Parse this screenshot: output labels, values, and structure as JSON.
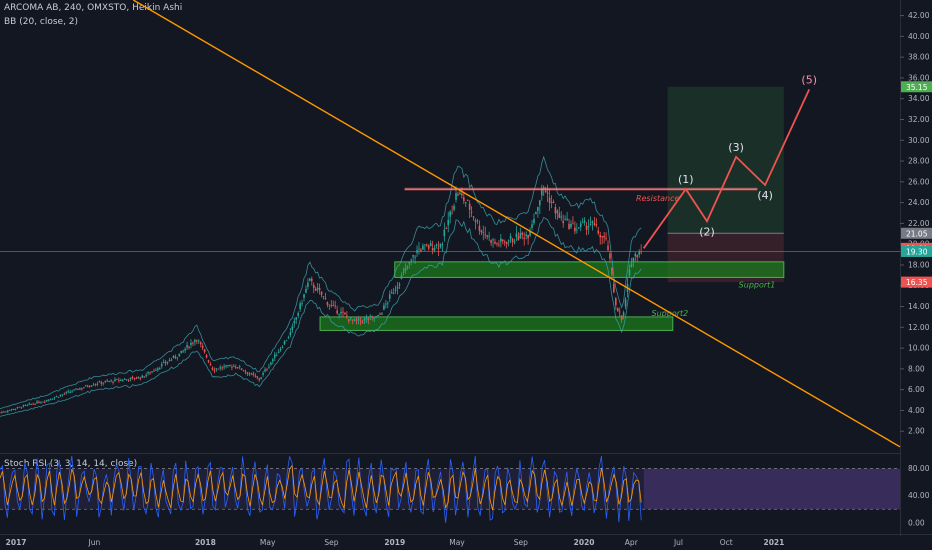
{
  "header": {
    "title": "ARCOMA AB, 240, OMXSTO, Heikin Ashi",
    "indicator": "BB (20, close, 2)",
    "stoch_label": "Stoch RSI (3, 3, 14, 14, close)"
  },
  "colors": {
    "background": "#131722",
    "bull": "#26a69a",
    "bear": "#ef5350",
    "trendline": "#ff9800",
    "resistance": "#f8a5a5",
    "support_fill": "#1b7a1b",
    "support_stroke": "#4caf50",
    "projection": "#ef5350",
    "bb": "#3fa9b5",
    "stoch_k": "#2962ff",
    "stoch_d": "#ff9800",
    "stoch_band": "#7e57c2"
  },
  "chart_data": [
    {
      "type": "candlestick",
      "title": "ARCOMA AB, 240, OMXSTO, Heikin Ashi",
      "y_ticks": [
        2,
        4,
        6,
        8,
        10,
        12,
        14,
        16,
        18,
        20,
        22,
        24,
        26,
        28,
        30,
        32,
        34,
        36,
        38,
        40,
        42
      ],
      "ylim": [
        0,
        43.5
      ],
      "x_ticks": [
        "2017",
        "Jun",
        "2018",
        "May",
        "Sep",
        "2019",
        "May",
        "Sep",
        "2020",
        "Apr",
        "Jul",
        "Oct",
        "2021"
      ],
      "x_tick_dates": [
        "2017-01",
        "2017-06",
        "2018-01",
        "2018-05",
        "2018-09",
        "2019-01",
        "2019-05",
        "2019-09",
        "2020-01",
        "2020-04",
        "2020-07",
        "2020-10",
        "2021-01"
      ],
      "xlim": [
        "2016-12-01",
        "2021-09-01"
      ],
      "price_path": [
        [
          "2016-12-01",
          3.8
        ],
        [
          "2017-03-01",
          5.0
        ],
        [
          "2017-06-01",
          6.6
        ],
        [
          "2017-09-01",
          7.2
        ],
        [
          "2017-11-15",
          9.5
        ],
        [
          "2017-12-15",
          11.0
        ],
        [
          "2018-01-15",
          8.0
        ],
        [
          "2018-03-01",
          8.3
        ],
        [
          "2018-04-15",
          7.0
        ],
        [
          "2018-06-15",
          11.5
        ],
        [
          "2018-07-20",
          16.5
        ],
        [
          "2018-09-01",
          14.0
        ],
        [
          "2018-10-15",
          12.5
        ],
        [
          "2018-12-01",
          13.0
        ],
        [
          "2019-01-10",
          16.5
        ],
        [
          "2019-02-15",
          19.5
        ],
        [
          "2019-04-01",
          20.0
        ],
        [
          "2019-05-01",
          25.0
        ],
        [
          "2019-05-20",
          24.0
        ],
        [
          "2019-06-15",
          21.5
        ],
        [
          "2019-07-15",
          20.0
        ],
        [
          "2019-08-15",
          20.5
        ],
        [
          "2019-09-15",
          21.0
        ],
        [
          "2019-10-15",
          25.5
        ],
        [
          "2019-11-15",
          22.5
        ],
        [
          "2019-12-15",
          21.5
        ],
        [
          "2020-01-15",
          22.0
        ],
        [
          "2020-02-15",
          20.0
        ],
        [
          "2020-03-01",
          14.5
        ],
        [
          "2020-03-15",
          12.5
        ],
        [
          "2020-04-01",
          18.5
        ],
        [
          "2020-04-20",
          19.6
        ]
      ],
      "current_price": 19.6,
      "horizontal_line": 19.3,
      "price_tags": [
        {
          "value": "35.15",
          "price": 35.15,
          "color": "#4caf50"
        },
        {
          "value": "21.05",
          "price": 21.05,
          "color": "#787b86"
        },
        {
          "value": "19.60",
          "price": 19.6,
          "color": "#ef5350"
        },
        {
          "value": "19.30",
          "price": 19.3,
          "color": "#26a69a"
        },
        {
          "value": "16.35",
          "price": 16.35,
          "color": "#ef5350"
        }
      ],
      "resistance": {
        "label": "Resistance",
        "price": 25.3,
        "from": "2019-01-20",
        "to": "2020-11-30"
      },
      "supports": [
        {
          "label": "Support1",
          "low": 16.8,
          "high": 18.3,
          "from": "2019-01-01",
          "to": "2021-01-20"
        },
        {
          "label": "Support2",
          "low": 11.7,
          "high": 13.0,
          "from": "2018-08-10",
          "to": "2020-06-20"
        }
      ],
      "trendline": [
        [
          "2017-08-15",
          43.5
        ],
        [
          "2021-09-01",
          0.5
        ]
      ],
      "long_position": {
        "from": "2020-06-10",
        "to": "2021-01-20",
        "entry": 21.05,
        "target": 35.15,
        "stop": 16.35
      },
      "wave_projection": [
        {
          "label": "",
          "date": "2020-04-25",
          "price": 19.6
        },
        {
          "label": "(1)",
          "date": "2020-07-15",
          "price": 25.3
        },
        {
          "label": "(2)",
          "date": "2020-08-25",
          "price": 22.2
        },
        {
          "label": "(3)",
          "date": "2020-10-20",
          "price": 28.4
        },
        {
          "label": "(4)",
          "date": "2020-12-15",
          "price": 25.7
        },
        {
          "label": "(5)",
          "date": "2021-03-10",
          "price": 34.9
        }
      ]
    },
    {
      "type": "line",
      "title": "Stoch RSI (3, 3, 14, 14, close)",
      "y_ticks": [
        0,
        40,
        80
      ],
      "y_tick_labels": [
        "0.00",
        "40.00",
        "80.00"
      ],
      "ylim": [
        -12,
        100
      ],
      "bands": [
        20,
        80
      ],
      "series": [
        {
          "color": "#2962ff"
        },
        {
          "color": "#ff9800"
        }
      ]
    }
  ]
}
